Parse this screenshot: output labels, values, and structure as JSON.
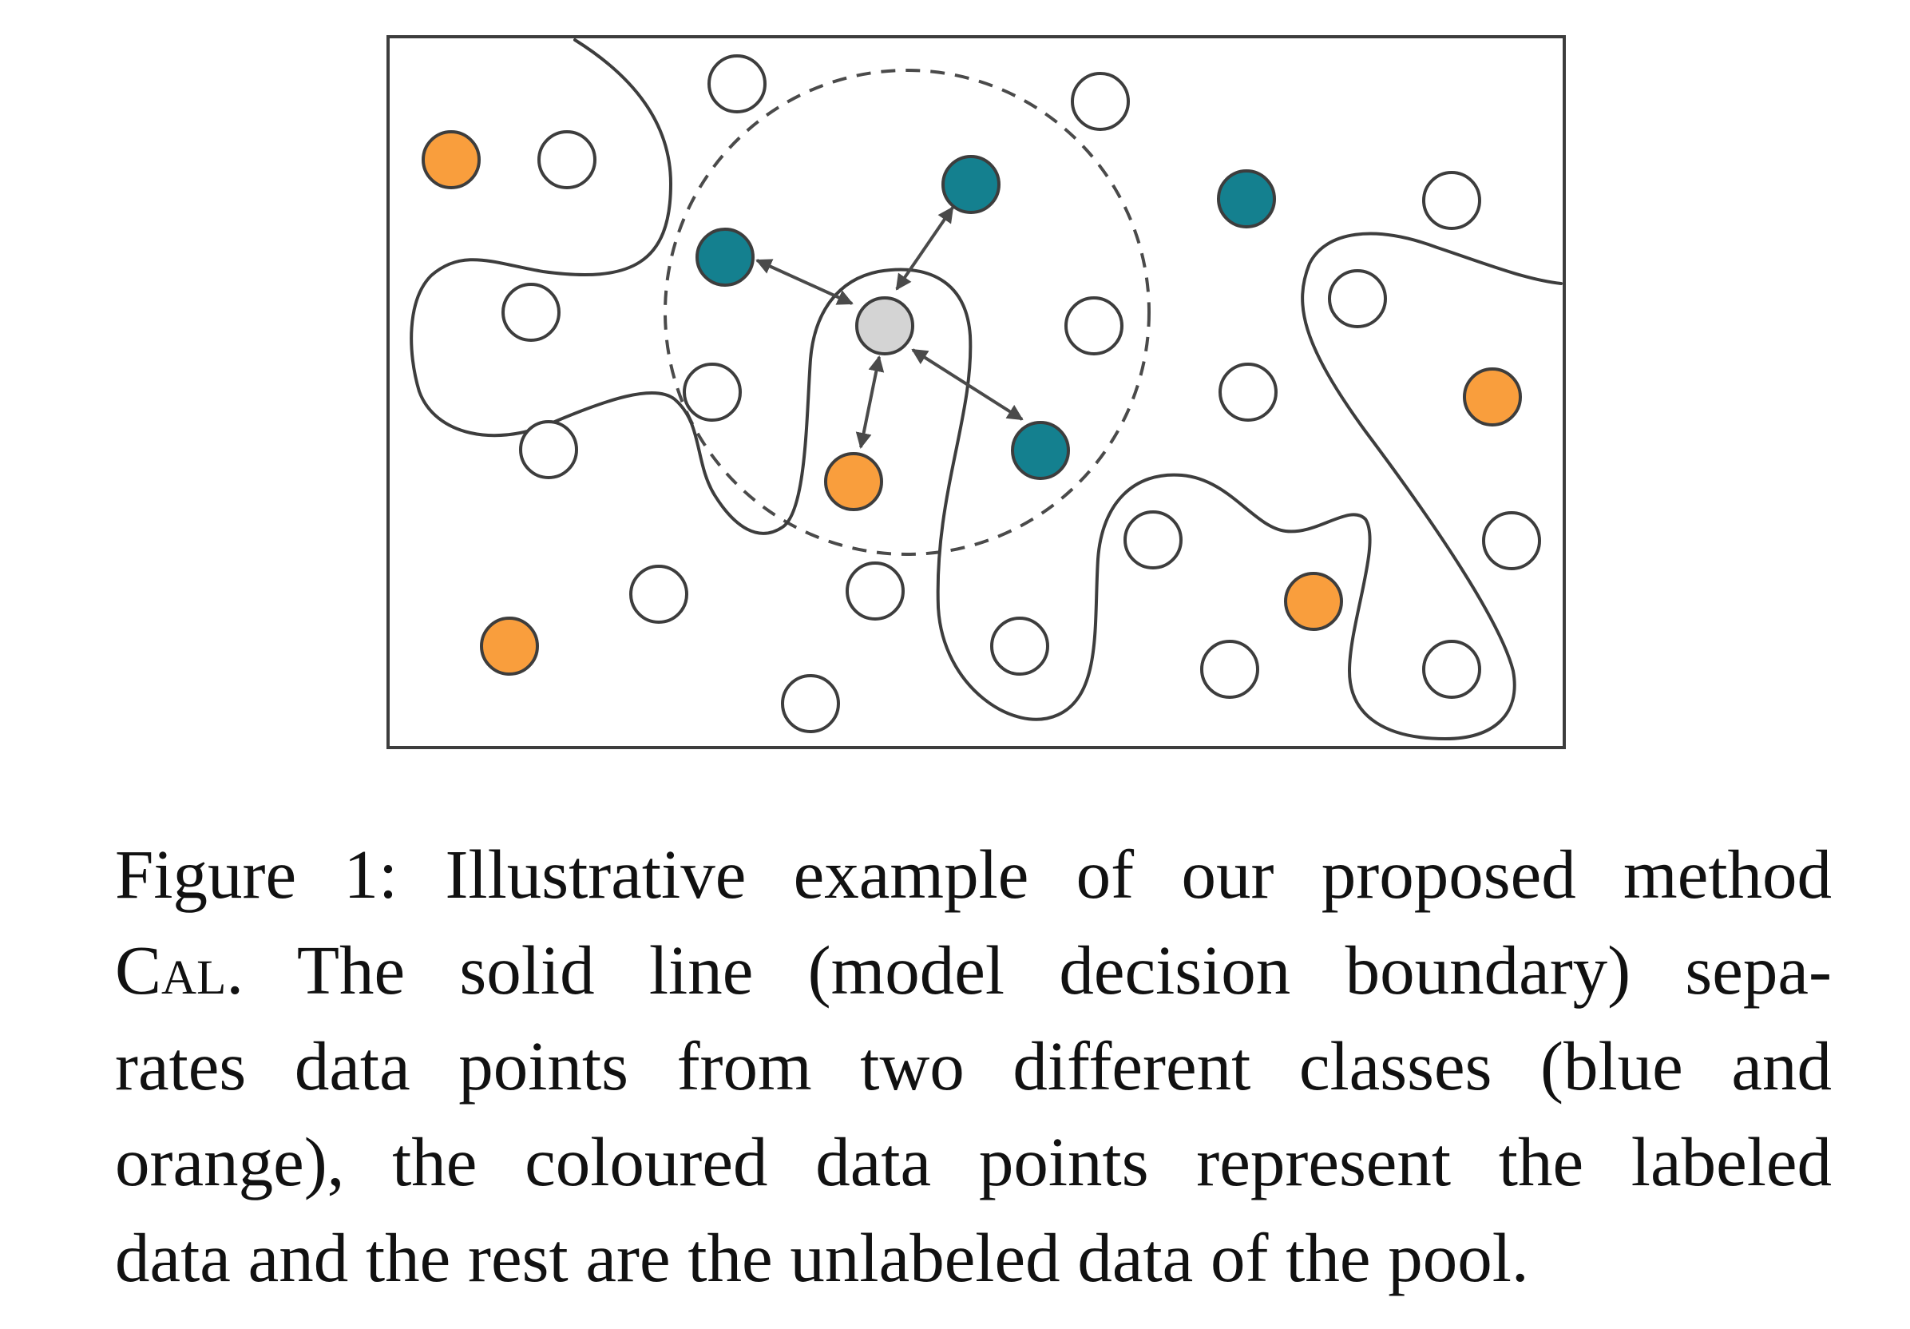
{
  "figure": {
    "colors": {
      "blue": "#14808f",
      "orange": "#f99e3d",
      "unlabeled": "#ffffff",
      "query": "#d4d4d4",
      "stroke": "#3d3d3d"
    },
    "points": [
      {
        "class": "orange"
      },
      {
        "class": "unlabeled"
      },
      {
        "class": "unlabeled"
      },
      {
        "class": "unlabeled"
      },
      {
        "class": "blue"
      },
      {
        "class": "blue"
      },
      {
        "class": "blue"
      },
      {
        "class": "unlabeled"
      },
      {
        "class": "unlabeled"
      },
      {
        "class": "unlabeled"
      },
      {
        "class": "unlabeled"
      },
      {
        "class": "unlabeled"
      },
      {
        "class": "query"
      },
      {
        "class": "unlabeled"
      },
      {
        "class": "blue"
      },
      {
        "class": "orange"
      },
      {
        "class": "orange"
      },
      {
        "class": "unlabeled"
      },
      {
        "class": "unlabeled"
      },
      {
        "class": "orange"
      },
      {
        "class": "unlabeled"
      },
      {
        "class": "unlabeled"
      },
      {
        "class": "unlabeled"
      },
      {
        "class": "unlabeled"
      },
      {
        "class": "unlabeled"
      },
      {
        "class": "orange"
      },
      {
        "class": "unlabeled"
      },
      {
        "class": "unlabeled"
      }
    ]
  },
  "caption": {
    "line1": "Figure 1: Illustrative example of our proposed method",
    "line2_method": "Cal",
    "line2_rest": ".  The solid line (model decision boundary) sepa-",
    "line3": "rates data points from two different classes (blue and",
    "line4": "orange), the coloured data points represent the labeled",
    "line5": "data and the rest are the unlabeled data of the pool."
  }
}
